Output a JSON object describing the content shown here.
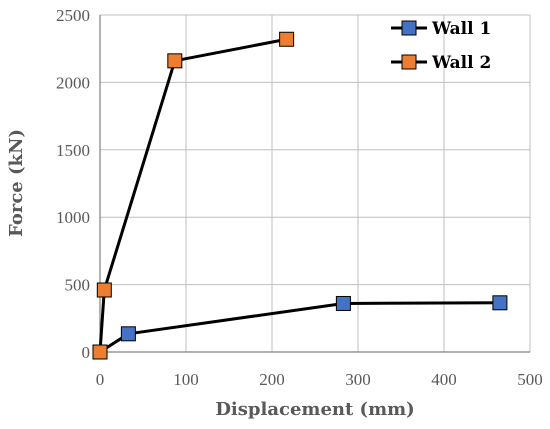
{
  "chart_data": {
    "type": "scatter",
    "xlabel": "Displacement (mm)",
    "ylabel": "Force (kN)",
    "xlim": [
      0,
      500
    ],
    "ylim": [
      0,
      2500
    ],
    "xticks": [
      "0",
      "100",
      "200",
      "300",
      "400",
      "500"
    ],
    "yticks": [
      "0",
      "500",
      "1000",
      "1500",
      "2000",
      "2500"
    ],
    "grid": true,
    "legend_position": "top-right",
    "series": [
      {
        "name": "Wall 1",
        "marker": "square",
        "color": "#4472C4",
        "line_color": "#000000",
        "x": [
          0,
          33,
          283,
          465
        ],
        "y": [
          0,
          135,
          360,
          365
        ]
      },
      {
        "name": "Wall 2",
        "marker": "square",
        "color": "#ED7D31",
        "line_color": "#000000",
        "x": [
          0,
          5,
          87,
          217
        ],
        "y": [
          0,
          460,
          2160,
          2320
        ]
      }
    ]
  }
}
